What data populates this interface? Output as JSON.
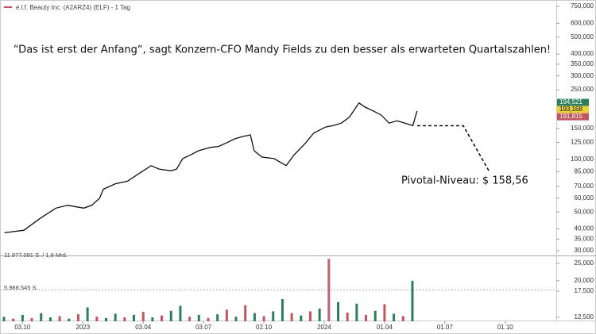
{
  "chart_data": [
    {
      "type": "line",
      "log_scale": true,
      "title": "e.l.f. Beauty Inc. (A2ARZ4) (ELF) - 1 Tag",
      "annotations": [
        "“Das ist erst der Anfang“, sagt Konzern-CFO Mandy Fields zu den besser als erwarteten Quartalszahlen!",
        "Pivotal-Niveau: $ 158,56"
      ],
      "color": "#111111",
      "x": [
        -3.9,
        0.3,
        3.8,
        7.2,
        9.7,
        13.2,
        14.9,
        16.6,
        17.4,
        20,
        22.6,
        25.1,
        27.7,
        29.4,
        32,
        33.2,
        34.5,
        36.2,
        37.9,
        40.5,
        42.2,
        43.9,
        45.7,
        47.4,
        49.1,
        49.9,
        51.6,
        54.2,
        56.8,
        58.5,
        61,
        62.7,
        65.3,
        67,
        68.7,
        70.4,
        72.5,
        73.8,
        75.6,
        77.3,
        79,
        80.7,
        82.4,
        84.1,
        85
      ],
      "values": [
        38,
        39.3,
        46,
        52.6,
        54.6,
        52.6,
        54.6,
        59.9,
        67.5,
        72.5,
        75,
        83,
        92,
        88,
        86,
        88,
        101,
        106,
        112,
        117,
        118.5,
        124,
        131,
        135,
        138,
        112,
        103,
        101,
        92,
        106,
        124,
        141,
        153,
        156,
        161,
        174,
        210,
        199,
        189,
        179,
        161,
        166,
        161,
        156,
        189
      ],
      "xlim": [
        -4,
        115
      ],
      "xticks": [
        {
          "value": 0,
          "label": "03.10"
        },
        {
          "value": 13,
          "label": "2023"
        },
        {
          "value": 26,
          "label": "03.04"
        },
        {
          "value": 39,
          "label": "03.07"
        },
        {
          "value": 52,
          "label": "02.10"
        },
        {
          "value": 65,
          "label": "2024"
        },
        {
          "value": 78,
          "label": "01.04"
        },
        {
          "value": 91,
          "label": "01.07"
        },
        {
          "value": 104,
          "label": "01.10"
        }
      ],
      "ylim": [
        28.2,
        815
      ],
      "yticks": [
        {
          "value": 750,
          "label": "750,000"
        },
        {
          "value": 600,
          "label": "600,000"
        },
        {
          "value": 500,
          "label": "500,000"
        },
        {
          "value": 400,
          "label": "400,000"
        },
        {
          "value": 350,
          "label": "350,000"
        },
        {
          "value": 300,
          "label": "300,000"
        },
        {
          "value": 250,
          "label": "250,000"
        },
        {
          "value": 150,
          "label": "150,000"
        },
        {
          "value": 125,
          "label": "125,000"
        },
        {
          "value": 100,
          "label": "100,000"
        },
        {
          "value": 85,
          "label": "85,000"
        },
        {
          "value": 70,
          "label": "70,000"
        },
        {
          "value": 60,
          "label": "60,000"
        },
        {
          "value": 50,
          "label": "50,000"
        },
        {
          "value": 40,
          "label": "40,000"
        },
        {
          "value": 35,
          "label": "35,000"
        },
        {
          "value": 30,
          "label": "30,000"
        }
      ],
      "price_labels": [
        {
          "value": 194.521,
          "label": "194,521",
          "color": "#2e7d5b"
        },
        {
          "value": 193.168,
          "label": "193,168",
          "color": "#e8d23a"
        },
        {
          "value": 191.815,
          "label": "191,815",
          "color": "#c0555f"
        }
      ]
    },
    {
      "type": "bar",
      "log_scale": true,
      "annotations": [
        "11.977.091 S. / 1,8 Mrd.",
        "5.988.545 S."
      ],
      "x": [
        -4,
        -2,
        0,
        2,
        4,
        6,
        8,
        10,
        12,
        14,
        16,
        18,
        20,
        22,
        24,
        26,
        28,
        30,
        32,
        34,
        36,
        38,
        40,
        42,
        44,
        46,
        48,
        50,
        52,
        54,
        56,
        58,
        60,
        62,
        64,
        66,
        68,
        70,
        72,
        74,
        76,
        78,
        80,
        82,
        84
      ],
      "values": [
        12600,
        12300,
        12900,
        12400,
        13200,
        12500,
        12700,
        12300,
        13000,
        14200,
        12600,
        12400,
        13100,
        12500,
        12900,
        13400,
        12500,
        12800,
        13600,
        14500,
        12600,
        12900,
        12400,
        13000,
        13800,
        12600,
        14600,
        13200,
        12700,
        13500,
        15800,
        13200,
        12800,
        13500,
        14000,
        26500,
        15200,
        13300,
        14900,
        12900,
        13600,
        14800,
        13100,
        12700,
        20000
      ],
      "colors": [
        "#2e7d5b",
        "#c0555f",
        "#2e7d5b",
        "#c0555f",
        "#2e7d5b",
        "#2e7d5b",
        "#c0555f",
        "#2e7d5b",
        "#c0555f",
        "#2e7d5b",
        "#c0555f",
        "#2e7d5b",
        "#2e7d5b",
        "#c0555f",
        "#2e7d5b",
        "#c0555f",
        "#2e7d5b",
        "#c0555f",
        "#2e7d5b",
        "#2e7d5b",
        "#c0555f",
        "#2e7d5b",
        "#c0555f",
        "#2e7d5b",
        "#c0555f",
        "#2e7d5b",
        "#c0555f",
        "#2e7d5b",
        "#c0555f",
        "#2e7d5b",
        "#2e7d5b",
        "#c0555f",
        "#2e7d5b",
        "#c0555f",
        "#2e7d5b",
        "#c06070",
        "#2e7d5b",
        "#c0555f",
        "#2e7d5b",
        "#c0555f",
        "#2e7d5b",
        "#c0555f",
        "#2e7d5b",
        "#c0555f",
        "#2e7d5b"
      ],
      "xlim": [
        -4,
        115
      ],
      "ylim": [
        11880,
        26580
      ],
      "yticks": [
        {
          "value": 25000,
          "label": "25,000"
        },
        {
          "value": 20000,
          "label": "20,000"
        },
        {
          "value": 17500,
          "label": "17,500"
        },
        {
          "value": 12500,
          "label": "12,500"
        }
      ]
    }
  ]
}
